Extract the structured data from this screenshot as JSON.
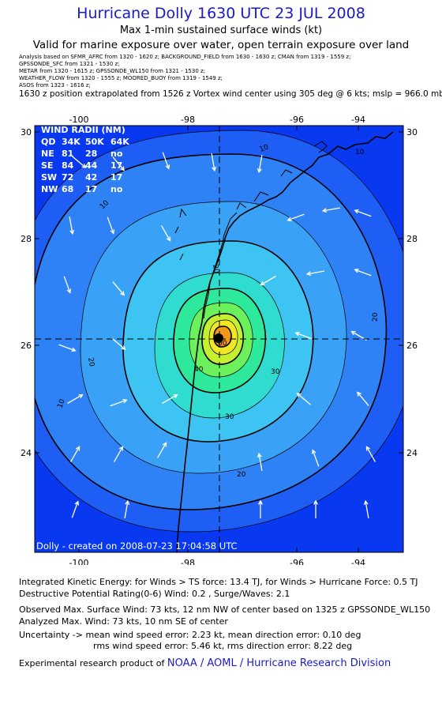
{
  "header": {
    "title": "Hurricane Dolly 1630 UTC 23 JUL 2008",
    "subtitle1": "Max 1-min sustained surface winds (kt)",
    "subtitle2": "Valid for marine exposure over water, open terrain exposure over land"
  },
  "sources": [
    "Analysis based on  SFMR_AFRC from 1320 - 1620 z;  BACKGROUND_FIELD from 1630 - 1630 z;  CMAN from 1319 - 1559 z;",
    "GPSSONDE_SFC from 1321 - 1530 z;",
    "METAR from 1320 - 1615 z;  GPSSONDE_WL150 from 1321 - 1530 z;",
    "WEATHER_FLOW from 1320 - 1555 z;  MOORED_BUOY from 1319 - 1549 z;",
    "ASOS from 1323 - 1616 z;"
  ],
  "position_note": "1630 z position extrapolated from 1526 z Vortex wind center using 305 deg @ 6 kts; mslp = 966.0 mb",
  "map": {
    "lon_ticks": [
      "-100",
      "-98",
      "-96",
      "-94"
    ],
    "lat_ticks": [
      "30",
      "28",
      "26",
      "24"
    ],
    "contour_labels": [
      "10",
      "10",
      "20",
      "20",
      "30",
      "30",
      "40",
      "10",
      "20",
      "10",
      "20",
      "60"
    ],
    "center": {
      "lon": -97.0,
      "lat": 26.15
    },
    "credit": "Dolly  -  created on 2008-07-23 17:04:58 UTC",
    "wind_radii": {
      "title": "WIND RADII (NM)",
      "header": [
        "QD",
        "34K",
        "50K",
        "64K"
      ],
      "rows": [
        [
          "NE",
          "81",
          "28",
          "no"
        ],
        [
          "SE",
          "84",
          "44",
          "17"
        ],
        [
          "SW",
          "72",
          "42",
          "17"
        ],
        [
          "NW",
          "68",
          "17",
          "no"
        ]
      ]
    },
    "colors": {
      "background": "#0838f0",
      "levels": [
        "#0838f0",
        "#1e5ef4",
        "#2f82f6",
        "#3aa2f6",
        "#3ec4f2",
        "#30dcd0",
        "#2ee89c",
        "#6cf05c",
        "#c4f030",
        "#f0e628",
        "#f09818"
      ],
      "land_line": "#000000",
      "arrow": "#ffffff"
    }
  },
  "footer": {
    "ike": "Integrated Kinetic Energy:  for Winds > TS force: 13.4 TJ,  for Winds > Hurricane Force: 0.5 TJ",
    "dpr": "Destructive Potential Rating(0-6)   Wind: 0.2 , Surge/Waves: 2.1",
    "obs_max": "Observed Max. Surface Wind: 73 kts, 12 nm NW of center based on 1325 z GPSSONDE_WL150",
    "analyzed_max": "Analyzed Max. Wind: 73 kts, 10 nm SE of center",
    "uncert1": "Uncertainty -> mean wind speed error: 2.23 kt,   mean direction error: 0.10 deg",
    "uncert2": "rms wind speed error: 5.46 kt,   rms direction error: 8.22 deg",
    "product_prefix": "Experimental research product of",
    "product_link": "NOAA / AOML / Hurricane Research Division"
  }
}
